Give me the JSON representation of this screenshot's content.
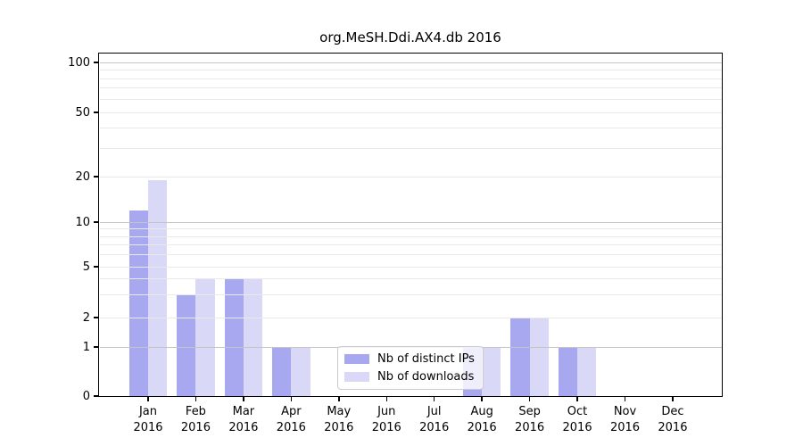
{
  "title": "org.MeSH.Ddi.AX4.db 2016",
  "chart_data": {
    "type": "bar",
    "title": "org.MeSH.Ddi.AX4.db 2016",
    "categories": [
      "Jan",
      "Feb",
      "Mar",
      "Apr",
      "May",
      "Jun",
      "Jul",
      "Aug",
      "Sep",
      "Oct",
      "Nov",
      "Dec"
    ],
    "category_year": "2016",
    "series": [
      {
        "name": "Nb of distinct IPs",
        "color": "#a8a8f0",
        "values": [
          12,
          3,
          4,
          1,
          0,
          0,
          0,
          1,
          2,
          1,
          0,
          0
        ]
      },
      {
        "name": "Nb of downloads",
        "color": "#d9d9f7",
        "values": [
          19,
          4,
          4,
          1,
          0,
          0,
          0,
          1,
          2,
          1,
          0,
          0
        ]
      }
    ],
    "xlabel": "",
    "ylabel": "",
    "y_axis": {
      "scale": "log-like with linear 0-1 segment",
      "tick_labels": [
        "0",
        "1",
        "2",
        "5",
        "10",
        "20",
        "50",
        "100"
      ],
      "tick_values": [
        0,
        1,
        2,
        5,
        10,
        20,
        50,
        100
      ],
      "major_gridline_values": [
        1,
        10,
        100
      ],
      "minor_gridline_values": [
        2,
        3,
        4,
        5,
        6,
        7,
        8,
        9,
        20,
        30,
        40,
        50,
        60,
        70,
        80,
        90
      ],
      "ylim": [
        0,
        113
      ]
    },
    "grid": true,
    "legend_position": "lower center-left inside plot",
    "colors": {
      "series_dark": "#a8a8f0",
      "series_light": "#d9d9f7",
      "major_grid": "#c4c4c4",
      "minor_grid": "#e9e9e9",
      "spine": "#000000",
      "legend_border": "#cccccc",
      "background": "#ffffff"
    }
  }
}
